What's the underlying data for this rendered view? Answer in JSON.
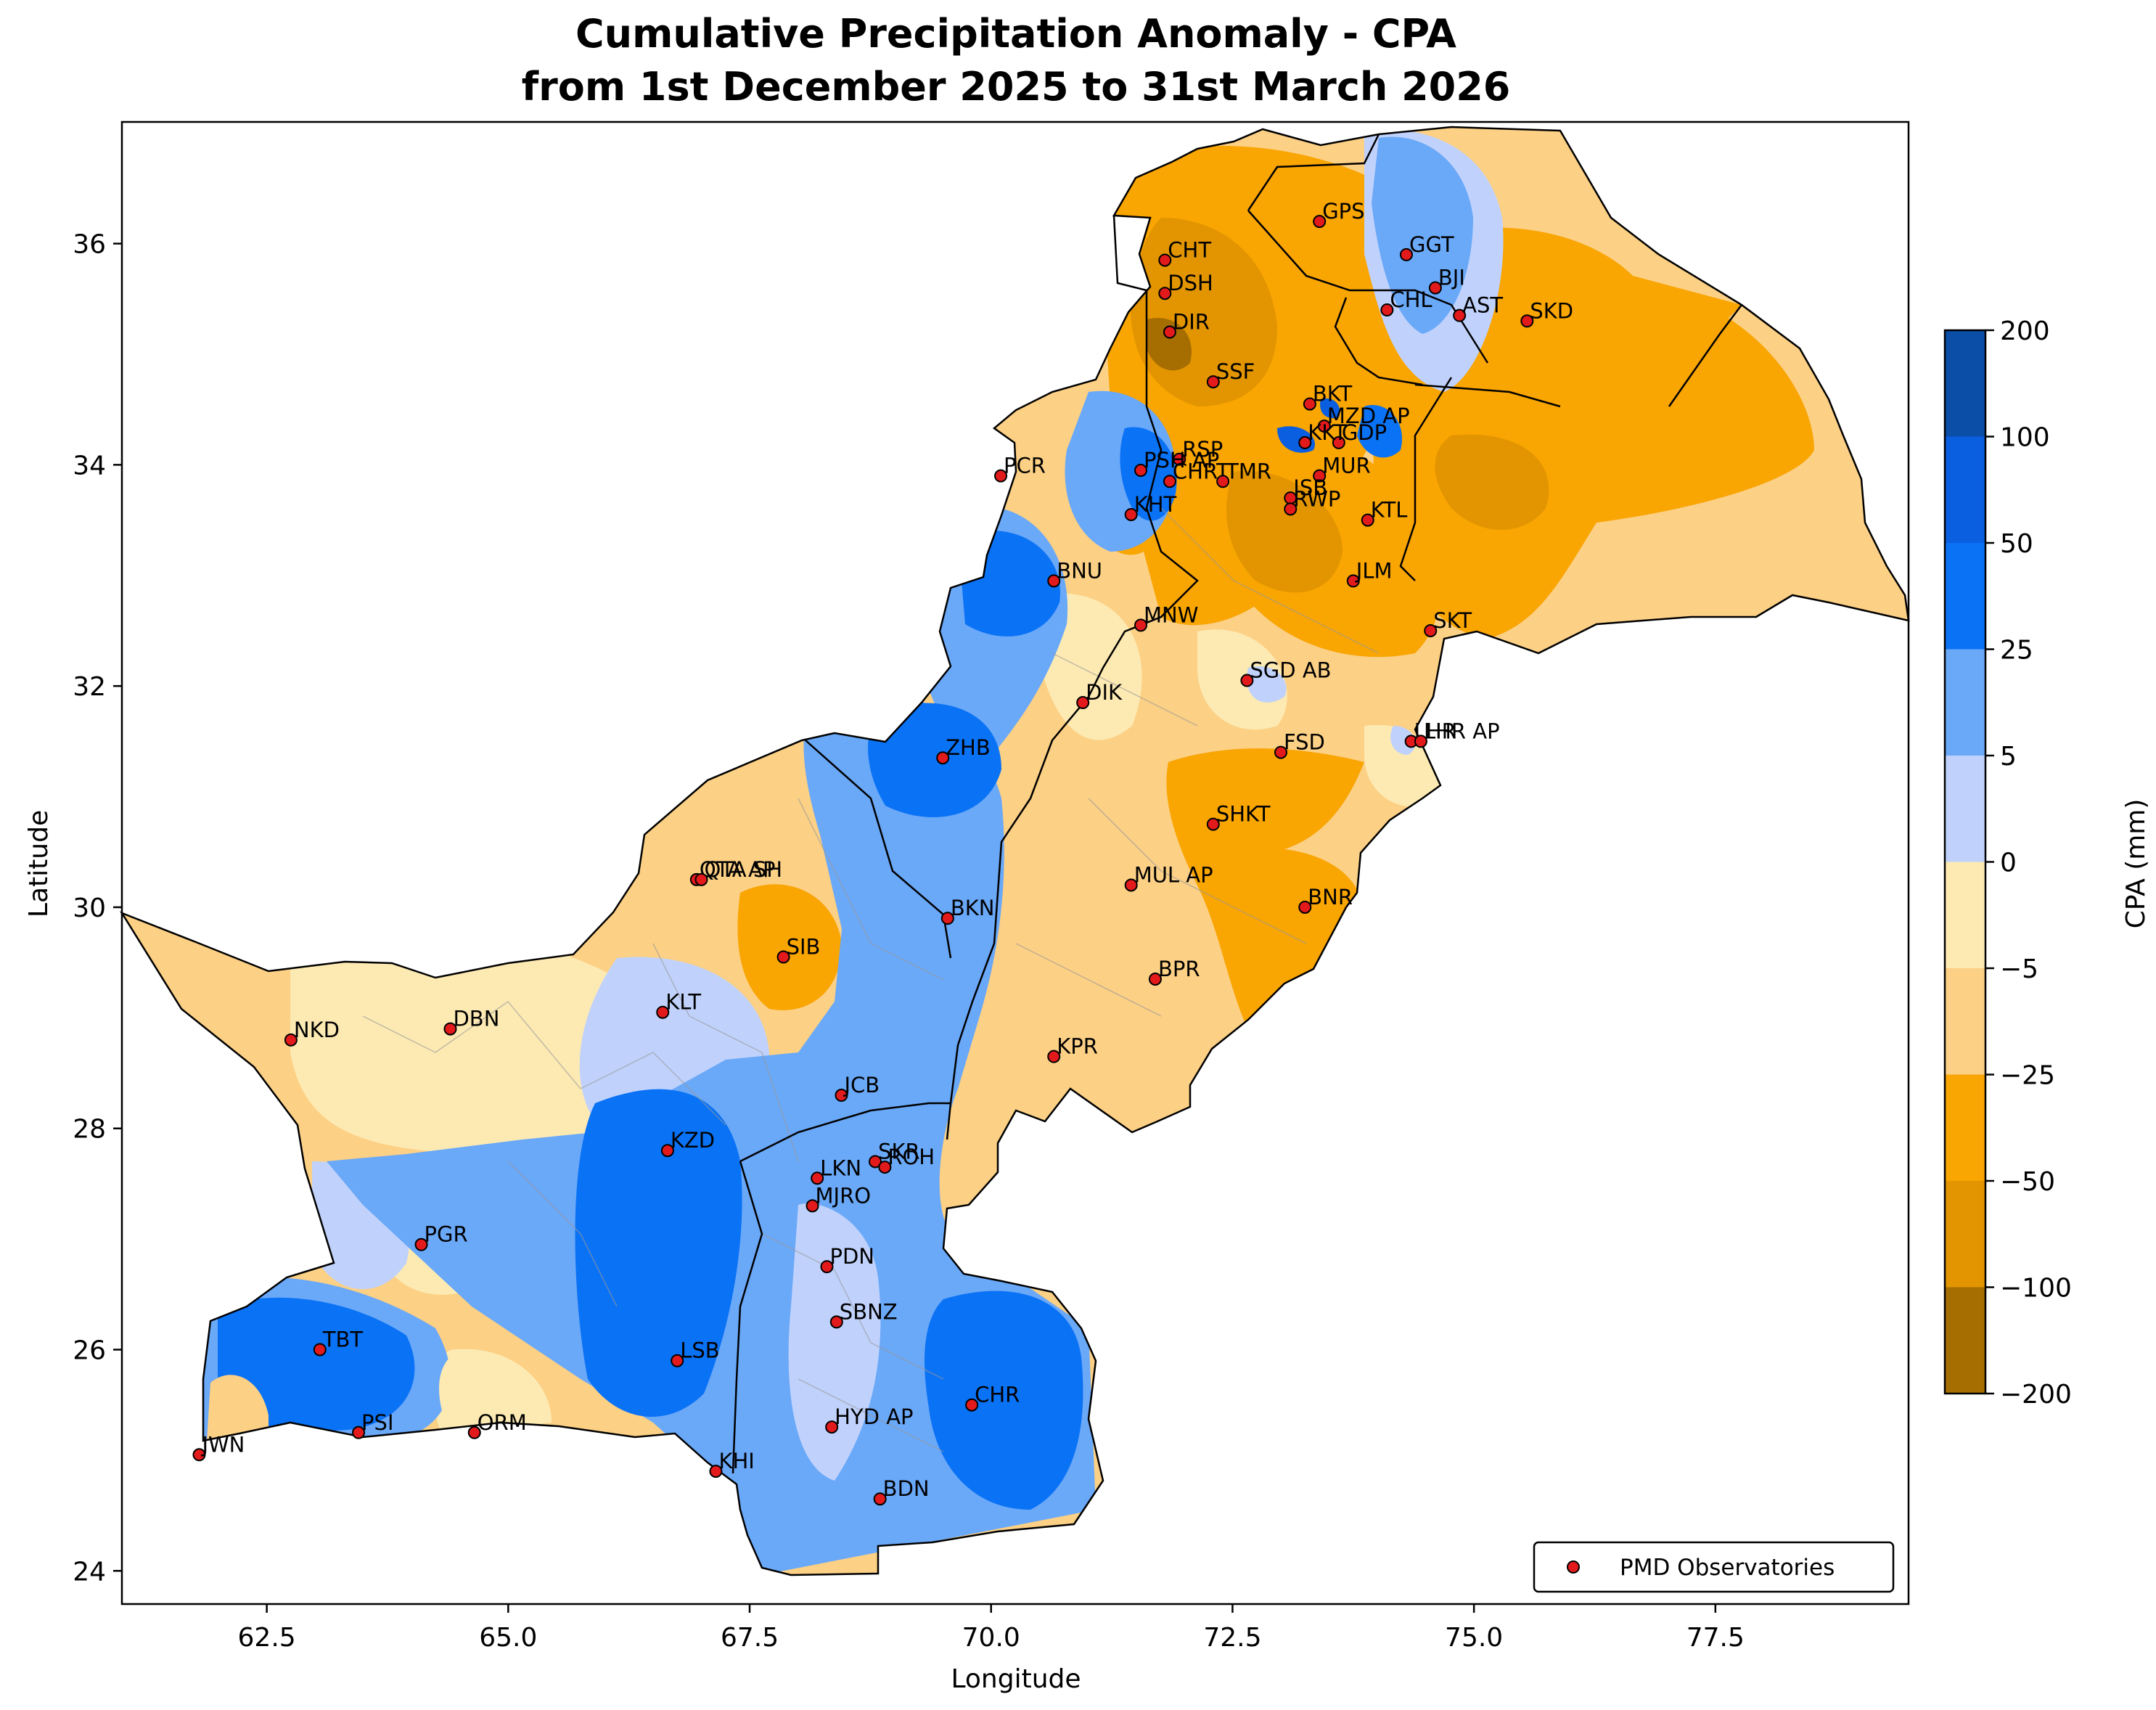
{
  "map": {
    "title_line1": "Cumulative Precipitation Anomaly - CPA",
    "title_line2": "from 1st December 2025 to 31st March 2026",
    "xlabel": "Longitude",
    "ylabel": "Latitude",
    "x_ticks": [
      "62.5",
      "65.0",
      "67.5",
      "70.0",
      "72.5",
      "75.0",
      "77.5"
    ],
    "y_ticks": [
      "24",
      "26",
      "28",
      "30",
      "32",
      "34",
      "36"
    ],
    "colorbar_label": "CPA (mm)",
    "colorbar_ticks": [
      "200",
      "100",
      "50",
      "25",
      "5",
      "0",
      "−5",
      "−25",
      "−50",
      "−100",
      "−200"
    ],
    "colorbar_colors": [
      "#0a4ea8",
      "#0a5ee0",
      "#0a72f5",
      "#6aa8f8",
      "#c0d2fc",
      "#fdeab3",
      "#fcd085",
      "#f9a502",
      "#e29500",
      "#a66e00"
    ],
    "legend_label": "PMD Observatories",
    "station_color": "#e31a1c",
    "xlim": [
      61.0,
      79.5
    ],
    "ylim": [
      23.7,
      37.1
    ]
  },
  "stations": [
    {
      "name": "GPS",
      "lon": 73.4,
      "lat": 36.2
    },
    {
      "name": "GGT",
      "lon": 74.3,
      "lat": 35.9
    },
    {
      "name": "BJI",
      "lon": 74.6,
      "lat": 35.6
    },
    {
      "name": "CHT",
      "lon": 71.8,
      "lat": 35.85
    },
    {
      "name": "DSH",
      "lon": 71.8,
      "lat": 35.55
    },
    {
      "name": "CHL",
      "lon": 74.1,
      "lat": 35.4
    },
    {
      "name": "AST",
      "lon": 74.85,
      "lat": 35.35
    },
    {
      "name": "SKD",
      "lon": 75.55,
      "lat": 35.3
    },
    {
      "name": "DIR",
      "lon": 71.85,
      "lat": 35.2
    },
    {
      "name": "SSF",
      "lon": 72.3,
      "lat": 34.75
    },
    {
      "name": "BKT",
      "lon": 73.3,
      "lat": 34.55
    },
    {
      "name": "MZD AP",
      "lon": 73.45,
      "lat": 34.35
    },
    {
      "name": "GDP",
      "lon": 73.6,
      "lat": 34.2
    },
    {
      "name": "KKT",
      "lon": 73.25,
      "lat": 34.2
    },
    {
      "name": "RSP",
      "lon": 71.95,
      "lat": 34.05
    },
    {
      "name": "PSH AP",
      "lon": 71.55,
      "lat": 33.95
    },
    {
      "name": "PCR",
      "lon": 70.1,
      "lat": 33.9
    },
    {
      "name": "CHRT",
      "lon": 71.85,
      "lat": 33.85
    },
    {
      "name": "TMR",
      "lon": 72.4,
      "lat": 33.85
    },
    {
      "name": "MUR",
      "lon": 73.4,
      "lat": 33.9
    },
    {
      "name": "ISB",
      "lon": 73.1,
      "lat": 33.7
    },
    {
      "name": "RWP",
      "lon": 73.1,
      "lat": 33.6
    },
    {
      "name": "KHT",
      "lon": 71.45,
      "lat": 33.55
    },
    {
      "name": "KTL",
      "lon": 73.9,
      "lat": 33.5
    },
    {
      "name": "BNU",
      "lon": 70.65,
      "lat": 32.95
    },
    {
      "name": "JLM",
      "lon": 73.75,
      "lat": 32.95
    },
    {
      "name": "MNW",
      "lon": 71.55,
      "lat": 32.55
    },
    {
      "name": "SKT",
      "lon": 74.55,
      "lat": 32.5
    },
    {
      "name": "SGD AB",
      "lon": 72.65,
      "lat": 32.05
    },
    {
      "name": "DIK",
      "lon": 70.95,
      "lat": 31.85
    },
    {
      "name": "LHR",
      "lon": 74.35,
      "lat": 31.5
    },
    {
      "name": "LHR AP",
      "lon": 74.45,
      "lat": 31.5
    },
    {
      "name": "FSD",
      "lon": 73.0,
      "lat": 31.4
    },
    {
      "name": "ZHB",
      "lon": 69.5,
      "lat": 31.35
    },
    {
      "name": "SHKT",
      "lon": 72.3,
      "lat": 30.75
    },
    {
      "name": "QTA AP",
      "lon": 66.95,
      "lat": 30.25
    },
    {
      "name": "QTA SH",
      "lon": 67.0,
      "lat": 30.25
    },
    {
      "name": "MUL AP",
      "lon": 71.45,
      "lat": 30.2
    },
    {
      "name": "BNR",
      "lon": 73.25,
      "lat": 30.0
    },
    {
      "name": "BKN",
      "lon": 69.55,
      "lat": 29.9
    },
    {
      "name": "SIB",
      "lon": 67.85,
      "lat": 29.55
    },
    {
      "name": "BPR",
      "lon": 71.7,
      "lat": 29.35
    },
    {
      "name": "KLT",
      "lon": 66.6,
      "lat": 29.05
    },
    {
      "name": "DBN",
      "lon": 64.4,
      "lat": 28.9
    },
    {
      "name": "NKD",
      "lon": 62.75,
      "lat": 28.8
    },
    {
      "name": "KPR",
      "lon": 70.65,
      "lat": 28.65
    },
    {
      "name": "JCB",
      "lon": 68.45,
      "lat": 28.3
    },
    {
      "name": "KZD",
      "lon": 66.65,
      "lat": 27.8
    },
    {
      "name": "SKR",
      "lon": 68.8,
      "lat": 27.7
    },
    {
      "name": "ROH",
      "lon": 68.9,
      "lat": 27.65
    },
    {
      "name": "LKN",
      "lon": 68.2,
      "lat": 27.55
    },
    {
      "name": "MJRO",
      "lon": 68.15,
      "lat": 27.3
    },
    {
      "name": "PGR",
      "lon": 64.1,
      "lat": 26.95
    },
    {
      "name": "PDN",
      "lon": 68.3,
      "lat": 26.75
    },
    {
      "name": "SBNZ",
      "lon": 68.4,
      "lat": 26.25
    },
    {
      "name": "TBT",
      "lon": 63.05,
      "lat": 26.0
    },
    {
      "name": "LSB",
      "lon": 66.75,
      "lat": 25.9
    },
    {
      "name": "CHR",
      "lon": 69.8,
      "lat": 25.5
    },
    {
      "name": "HYD AP",
      "lon": 68.35,
      "lat": 25.3
    },
    {
      "name": "PSI",
      "lon": 63.45,
      "lat": 25.25
    },
    {
      "name": "ORM",
      "lon": 64.65,
      "lat": 25.25
    },
    {
      "name": "JWN",
      "lon": 61.8,
      "lat": 25.05
    },
    {
      "name": "KHI",
      "lon": 67.15,
      "lat": 24.9
    },
    {
      "name": "BDN",
      "lon": 68.85,
      "lat": 24.65
    }
  ]
}
